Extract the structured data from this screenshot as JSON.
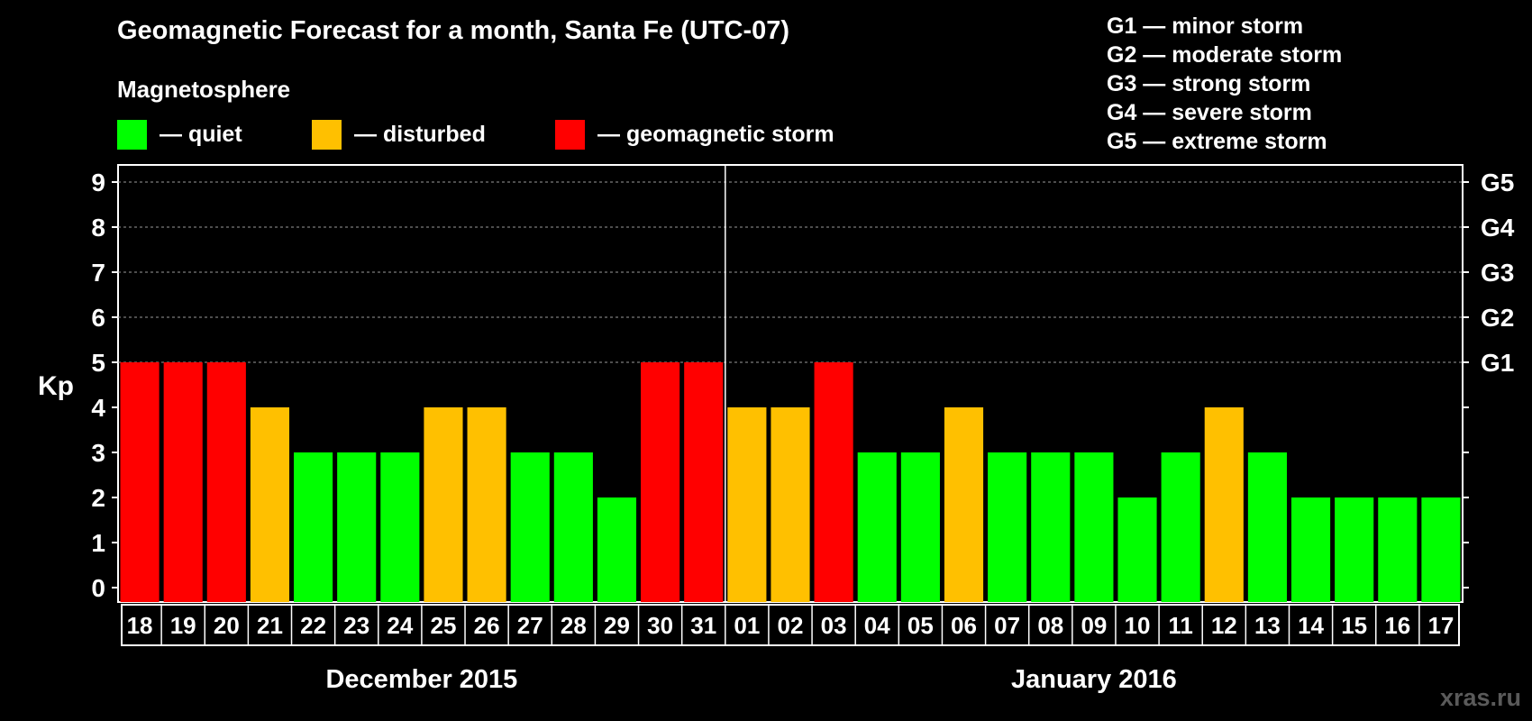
{
  "title": "Geomagnetic Forecast for a month, Santa Fe (UTC-07)",
  "magnetosphere": {
    "heading": "Magnetosphere",
    "items": [
      {
        "label": "— quiet",
        "color": "#00ff00"
      },
      {
        "label": "— disturbed",
        "color": "#ffc000"
      },
      {
        "label": "— geomagnetic storm",
        "color": "#ff0000"
      }
    ]
  },
  "storm_scale": [
    "G1 — minor storm",
    "G2 — moderate storm",
    "G3 — strong storm",
    "G4 — severe storm",
    "G5 — extreme storm"
  ],
  "brand": "xras.ru",
  "chart_data": {
    "type": "bar",
    "ylabel": "Kp",
    "ylim": [
      0,
      9
    ],
    "yticks": [
      "0",
      "1",
      "2",
      "3",
      "4",
      "5",
      "6",
      "7",
      "8",
      "9"
    ],
    "right_ticks": [
      {
        "kp": 5,
        "label": "G1"
      },
      {
        "kp": 6,
        "label": "G2"
      },
      {
        "kp": 7,
        "label": "G3"
      },
      {
        "kp": 8,
        "label": "G4"
      },
      {
        "kp": 9,
        "label": "G5"
      }
    ],
    "categories": [
      "18",
      "19",
      "20",
      "21",
      "22",
      "23",
      "24",
      "25",
      "26",
      "27",
      "28",
      "29",
      "30",
      "31",
      "01",
      "02",
      "03",
      "04",
      "05",
      "06",
      "07",
      "08",
      "09",
      "10",
      "11",
      "12",
      "13",
      "14",
      "15",
      "16",
      "17"
    ],
    "values": [
      5,
      5,
      5,
      4,
      3,
      3,
      3,
      4,
      4,
      3,
      3,
      2,
      5,
      5,
      4,
      4,
      5,
      3,
      3,
      4,
      3,
      3,
      3,
      2,
      3,
      4,
      3,
      2,
      2,
      2,
      2
    ],
    "months": [
      {
        "label": "December 2015",
        "count": 14
      },
      {
        "label": "January 2016",
        "count": 17
      }
    ],
    "colors": {
      "quiet": "#00ff00",
      "disturbed": "#ffc000",
      "storm": "#ff0000"
    },
    "grid": "dashed lines at 6, 7, 8, 9"
  }
}
